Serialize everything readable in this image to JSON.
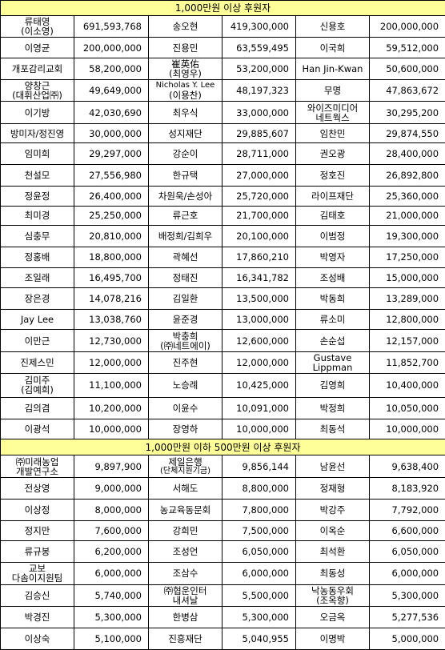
{
  "sections": [
    {
      "title": "1,000만원 이상 후원자",
      "rows": [
        [
          {
            "name": "류태영\n(이소영)",
            "amount": "691,593,768"
          },
          {
            "name": "송오현",
            "amount": "419,300,000"
          },
          {
            "name": "신용호",
            "amount": "200,000,000"
          }
        ],
        [
          {
            "name": "이영균",
            "amount": "200,000,000"
          },
          {
            "name": "진용민",
            "amount": "63,559,495"
          },
          {
            "name": "이국희",
            "amount": "59,512,000"
          }
        ],
        [
          {
            "name": "개포감리교회",
            "amount": "58,200,000"
          },
          {
            "name": "崔英佑\n(최영우)",
            "amount": "53,200,000"
          },
          {
            "name": "Han Jin-Kwan",
            "amount": "50,600,000"
          }
        ],
        [
          {
            "name": "양창근\n(대휘산업㈜)",
            "amount": "49,649,000"
          },
          {
            "name": "Nicholas Y. Lee\n(이용찬)",
            "amount": "48,197,323"
          },
          {
            "name": "무명",
            "amount": "47,863,672"
          }
        ],
        [
          {
            "name": "이기방",
            "amount": "42,030,690"
          },
          {
            "name": "최우식",
            "amount": "33,000,000"
          },
          {
            "name": "와이즈미디어\n네트웍스",
            "amount": "30,295,200"
          }
        ],
        [
          {
            "name": "방미자/정진영",
            "amount": "30,000,000"
          },
          {
            "name": "성지재단",
            "amount": "29,885,607"
          },
          {
            "name": "임찬민",
            "amount": "29,874,550"
          }
        ],
        [
          {
            "name": "임미희",
            "amount": "29,297,000"
          },
          {
            "name": "강순이",
            "amount": "28,711,000"
          },
          {
            "name": "권오광",
            "amount": "28,400,000"
          }
        ],
        [
          {
            "name": "천설모",
            "amount": "27,556,980"
          },
          {
            "name": "한규택",
            "amount": "27,000,000"
          },
          {
            "name": "정호진",
            "amount": "26,892,800"
          }
        ],
        [
          {
            "name": "정윤정",
            "amount": "26,400,000"
          },
          {
            "name": "차원욱/손성아",
            "amount": "25,720,000"
          },
          {
            "name": "라이프재단",
            "amount": "25,360,000"
          }
        ],
        [
          {
            "name": "최미경",
            "amount": "25,250,000"
          },
          {
            "name": "류근호",
            "amount": "21,700,000"
          },
          {
            "name": "김태호",
            "amount": "21,000,000"
          }
        ],
        [
          {
            "name": "심충무",
            "amount": "20,810,000"
          },
          {
            "name": "배정희/김희우",
            "amount": "20,100,000"
          },
          {
            "name": "이범정",
            "amount": "19,300,000"
          }
        ],
        [
          {
            "name": "정홍배",
            "amount": "18,800,000"
          },
          {
            "name": "곽혜선",
            "amount": "17,860,210"
          },
          {
            "name": "박영자",
            "amount": "17,250,000"
          }
        ],
        [
          {
            "name": "조일래",
            "amount": "16,495,700"
          },
          {
            "name": "정태진",
            "amount": "16,341,782"
          },
          {
            "name": "조성배",
            "amount": "15,000,000"
          }
        ],
        [
          {
            "name": "장은경",
            "amount": "14,078,216"
          },
          {
            "name": "김일환",
            "amount": "13,500,000"
          },
          {
            "name": "박동희",
            "amount": "13,289,000"
          }
        ],
        [
          {
            "name": "Jay Lee",
            "amount": "13,038,760"
          },
          {
            "name": "윤준경",
            "amount": "13,000,000"
          },
          {
            "name": "류소미",
            "amount": "12,800,000"
          }
        ],
        [
          {
            "name": "이만근",
            "amount": "12,730,000"
          },
          {
            "name": "박충희\n(㈜네트에이)",
            "amount": "12,600,000"
          },
          {
            "name": "손순섭",
            "amount": "12,157,000"
          }
        ],
        [
          {
            "name": "진제스민",
            "amount": "12,000,000"
          },
          {
            "name": "진주현",
            "amount": "12,000,000"
          },
          {
            "name": "Gustave\nLippman",
            "amount": "11,852,700"
          }
        ],
        [
          {
            "name": "김미주\n(김예희)",
            "amount": "11,100,000"
          },
          {
            "name": "노승례",
            "amount": "10,425,000"
          },
          {
            "name": "김영희",
            "amount": "10,400,000"
          }
        ],
        [
          {
            "name": "김의겸",
            "amount": "10,200,000"
          },
          {
            "name": "이윤수",
            "amount": "10,091,000"
          },
          {
            "name": "박정희",
            "amount": "10,050,000"
          }
        ],
        [
          {
            "name": "이광석",
            "amount": "10,000,000"
          },
          {
            "name": "장영하",
            "amount": "10,000,000"
          },
          {
            "name": "최동석",
            "amount": "10,000,000"
          }
        ]
      ]
    },
    {
      "title": "1,000만원 이하 500만원 이상 후원자",
      "rows": [
        [
          {
            "name": "㈜미래농업\n개발연구소",
            "amount": "9,897,900"
          },
          {
            "name": "제일은행\n(단체지원기금)",
            "amount": "9,856,144"
          },
          {
            "name": "남윤선",
            "amount": "9,638,400"
          }
        ],
        [
          {
            "name": "전상영",
            "amount": "9,000,000"
          },
          {
            "name": "서해도",
            "amount": "8,800,000"
          },
          {
            "name": "정재형",
            "amount": "8,183,920"
          }
        ],
        [
          {
            "name": "이상정",
            "amount": "8,000,000"
          },
          {
            "name": "농교육동문회",
            "amount": "7,800,000"
          },
          {
            "name": "박강주",
            "amount": "7,792,000"
          }
        ],
        [
          {
            "name": "정지만",
            "amount": "7,600,000"
          },
          {
            "name": "강희민",
            "amount": "7,500,000"
          },
          {
            "name": "이옥순",
            "amount": "6,600,000"
          }
        ],
        [
          {
            "name": "류규봉",
            "amount": "6,200,000"
          },
          {
            "name": "조성언",
            "amount": "6,050,000"
          },
          {
            "name": "최석환",
            "amount": "6,050,000"
          }
        ],
        [
          {
            "name": "교보\n다솜이지원팀",
            "amount": "6,000,000"
          },
          {
            "name": "조삼수",
            "amount": "6,000,000"
          },
          {
            "name": "최동성",
            "amount": "6,000,000"
          }
        ],
        [
          {
            "name": "김승신",
            "amount": "5,740,000"
          },
          {
            "name": "㈜협운인터\n내셔날",
            "amount": "5,500,000"
          },
          {
            "name": "낙농동우회\n(조옥향)",
            "amount": "5,300,000"
          }
        ],
        [
          {
            "name": "박경진",
            "amount": "5,300,000"
          },
          {
            "name": "한병삼",
            "amount": "5,300,000"
          },
          {
            "name": "오금옥",
            "amount": "5,277,536"
          }
        ],
        [
          {
            "name": "이상숙",
            "amount": "5,100,000"
          },
          {
            "name": "진흥재단",
            "amount": "5,040,955"
          },
          {
            "name": "이명박",
            "amount": "5,000,000"
          }
        ]
      ]
    }
  ]
}
